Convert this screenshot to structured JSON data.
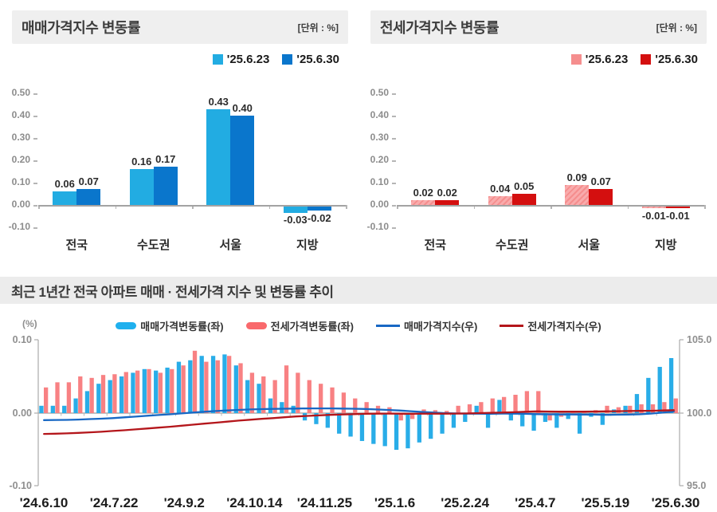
{
  "panels": [
    {
      "title": "매매가격지수 변동률",
      "unit": "[단위 : %]",
      "legend": [
        {
          "label": "'25.6.23",
          "color": "#22ACE2"
        },
        {
          "label": "'25.6.30",
          "color": "#0A76CC"
        }
      ]
    },
    {
      "title": "전세가격지수 변동률",
      "unit": "[단위 : %]",
      "legend": [
        {
          "label": "'25.6.23",
          "color": "#F58E8E"
        },
        {
          "label": "'25.6.30",
          "color": "#D40F0F"
        }
      ]
    }
  ],
  "trend_section": {
    "title": "최근 1년간 전국 아파트 매매 · 전세가격 지수 및 변동률 추이",
    "axis_unit_label": "(%)",
    "legend": [
      {
        "label": "매매가격변동률(좌)",
        "swatch": "bar",
        "color": "#1FB0EE"
      },
      {
        "label": "전세가격변동률(좌)",
        "swatch": "bar",
        "color": "#F9696C"
      },
      {
        "label": "매매가격지수(우)",
        "swatch": "line",
        "color": "#1868C4"
      },
      {
        "label": "전세가격지수(우)",
        "swatch": "line",
        "color": "#B4161B"
      }
    ]
  },
  "chart_data": [
    {
      "type": "bar",
      "title": "매매가격지수 변동률",
      "unit": "%",
      "categories": [
        "전국",
        "수도권",
        "서울",
        "지방"
      ],
      "series": [
        {
          "name": "'25.6.23",
          "color": "#22ACE2",
          "hatch": false,
          "values": [
            0.06,
            0.16,
            0.43,
            -0.03
          ]
        },
        {
          "name": "'25.6.30",
          "color": "#0A76CC",
          "hatch": false,
          "values": [
            0.07,
            0.17,
            0.4,
            -0.02
          ]
        }
      ],
      "ylim": [
        -0.1,
        0.5
      ],
      "yticks": [
        "0.50",
        "0.40",
        "0.30",
        "0.20",
        "0.10",
        "0.00",
        "-0.10"
      ]
    },
    {
      "type": "bar",
      "title": "전세가격지수 변동률",
      "unit": "%",
      "categories": [
        "전국",
        "수도권",
        "서울",
        "지방"
      ],
      "series": [
        {
          "name": "'25.6.23",
          "color": "#F58E8E",
          "hatch": true,
          "hatch_fill": "#F9ABAC",
          "values": [
            0.02,
            0.04,
            0.09,
            -0.01
          ]
        },
        {
          "name": "'25.6.30",
          "color": "#D40F0F",
          "hatch": false,
          "values": [
            0.02,
            0.05,
            0.07,
            -0.01
          ]
        }
      ],
      "ylim": [
        -0.1,
        0.5
      ],
      "yticks": [
        "0.50",
        "0.40",
        "0.30",
        "0.20",
        "0.10",
        "0.00",
        "-0.10"
      ]
    },
    {
      "type": "bar+line",
      "title": "최근 1년간 전국 아파트 매매 · 전세가격 지수 및 변동률 추이",
      "x_labels": [
        "'24.6.10",
        "'24.7.22",
        "'24.9.2",
        "'24.10.14",
        "'24.11.25",
        "'25.1.6",
        "'25.2.24",
        "'25.4.7",
        "'25.5.19",
        "'25.6.30"
      ],
      "weeks": 56,
      "left_ylim": [
        -0.1,
        0.1
      ],
      "right_ylim": [
        95.0,
        105.0
      ],
      "left_yticks": [
        "0.10",
        "0.00",
        "-0.10"
      ],
      "right_yticks": [
        "105.0",
        "100.0",
        "95.0"
      ],
      "series": [
        {
          "name": "매매가격변동률(좌)",
          "type": "bar",
          "axis": "left",
          "color": "#29ADE8",
          "values": [
            0.01,
            0.01,
            0.01,
            0.02,
            0.03,
            0.04,
            0.045,
            0.05,
            0.055,
            0.06,
            0.058,
            0.062,
            0.07,
            0.072,
            0.078,
            0.078,
            0.08,
            0.065,
            0.045,
            0.04,
            0.02,
            0.015,
            0.01,
            -0.01,
            -0.015,
            -0.02,
            -0.028,
            -0.032,
            -0.038,
            -0.042,
            -0.045,
            -0.05,
            -0.048,
            -0.04,
            -0.035,
            -0.028,
            -0.02,
            -0.012,
            0.01,
            -0.02,
            0.018,
            -0.01,
            -0.018,
            -0.024,
            -0.012,
            -0.02,
            -0.008,
            -0.028,
            -0.005,
            -0.016,
            0.005,
            0.01,
            0.026,
            0.048,
            0.063,
            0.075
          ]
        },
        {
          "name": "전세가격변동률(좌)",
          "type": "bar",
          "axis": "left",
          "color": "#F88183",
          "values": [
            0.035,
            0.042,
            0.042,
            0.05,
            0.048,
            0.052,
            0.053,
            0.056,
            0.058,
            0.06,
            0.055,
            0.06,
            0.065,
            0.085,
            0.07,
            0.072,
            0.078,
            0.068,
            0.055,
            0.05,
            0.045,
            0.065,
            0.055,
            0.045,
            0.04,
            0.035,
            0.028,
            0.02,
            0.015,
            0.01,
            0.008,
            -0.01,
            -0.008,
            0.005,
            0.004,
            0.003,
            0.01,
            0.012,
            0.015,
            0.02,
            0.022,
            0.025,
            0.03,
            0.03,
            -0.01,
            -0.005,
            0.002,
            0.003,
            0.004,
            0.01,
            0.008,
            0.01,
            0.012,
            0.012,
            0.015,
            0.02
          ]
        },
        {
          "name": "매매가격지수(우)",
          "type": "line",
          "axis": "right",
          "color": "#1868C4",
          "values": [
            99.52,
            99.53,
            99.54,
            99.56,
            99.59,
            99.62,
            99.66,
            99.71,
            99.76,
            99.82,
            99.87,
            99.92,
            99.98,
            100.04,
            100.09,
            100.14,
            100.18,
            100.22,
            100.25,
            100.27,
            100.29,
            100.3,
            100.31,
            100.32,
            100.32,
            100.32,
            100.31,
            100.3,
            100.28,
            100.25,
            100.22,
            100.18,
            100.13,
            100.08,
            100.04,
            100.0,
            99.98,
            99.96,
            99.96,
            99.95,
            99.97,
            99.96,
            99.95,
            99.93,
            99.92,
            99.91,
            99.91,
            99.9,
            99.9,
            99.88,
            99.89,
            99.9,
            99.92,
            99.97,
            100.03,
            100.11
          ]
        },
        {
          "name": "전세가격지수(우)",
          "type": "line",
          "axis": "right",
          "color": "#B4161B",
          "values": [
            98.58,
            98.6,
            98.62,
            98.65,
            98.69,
            98.73,
            98.78,
            98.83,
            98.89,
            98.95,
            99.01,
            99.07,
            99.14,
            99.21,
            99.28,
            99.35,
            99.42,
            99.49,
            99.55,
            99.61,
            99.66,
            99.72,
            99.77,
            99.81,
            99.85,
            99.88,
            99.91,
            99.93,
            99.95,
            99.96,
            99.97,
            99.96,
            99.95,
            99.96,
            99.96,
            99.96,
            99.97,
            99.98,
            100.0,
            100.02,
            100.04,
            100.06,
            100.09,
            100.12,
            100.11,
            100.1,
            100.1,
            100.1,
            100.11,
            100.12,
            100.13,
            100.14,
            100.15,
            100.16,
            100.18,
            100.2
          ]
        }
      ]
    }
  ]
}
